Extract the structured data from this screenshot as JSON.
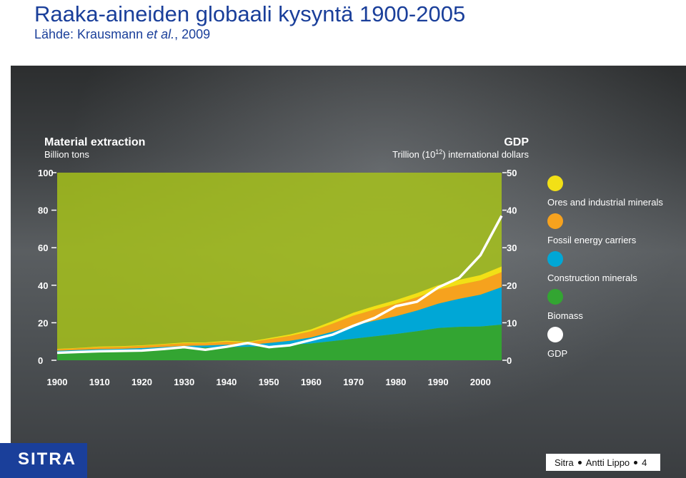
{
  "header": {
    "title": "Raaka-aineiden globaali kysyntä 1900-2005",
    "subtitle_prefix": "Lähde: Krausmann ",
    "subtitle_italic": "et al.",
    "subtitle_suffix": ", 2009"
  },
  "chart_data": {
    "type": "area",
    "left_axis": {
      "title": "Material extraction",
      "unit": "Billion tons",
      "ticks": [
        "0",
        "20",
        "40",
        "60",
        "80",
        "100"
      ],
      "range": [
        0,
        100
      ]
    },
    "right_axis": {
      "title": "GDP",
      "unit_prefix": "Trillion (10",
      "unit_sup": "12",
      "unit_suffix": ") international dollars",
      "ticks": [
        "0",
        "10",
        "20",
        "30",
        "40",
        "50"
      ],
      "range": [
        0,
        50
      ]
    },
    "x": [
      1900,
      1905,
      1910,
      1915,
      1920,
      1925,
      1930,
      1935,
      1940,
      1945,
      1950,
      1955,
      1960,
      1965,
      1970,
      1975,
      1980,
      1985,
      1990,
      1995,
      2000,
      2005
    ],
    "x_ticks": [
      "1900",
      "1910",
      "1920",
      "1930",
      "1940",
      "1950",
      "1960",
      "1970",
      "1980",
      "1990",
      "2000"
    ],
    "series": [
      {
        "name": "Biomass",
        "color": "#33a532",
        "values": [
          4.5,
          4.8,
          5.1,
          5.3,
          5.6,
          6.0,
          6.5,
          6.8,
          7.0,
          7.2,
          7.6,
          8.2,
          9.0,
          10.2,
          11.5,
          12.8,
          14.0,
          15.5,
          17.2,
          17.8,
          18.0,
          19.0
        ]
      },
      {
        "name": "Construction minerals",
        "color": "#00a7d6",
        "values": [
          0.6,
          0.7,
          0.8,
          0.8,
          0.9,
          1.1,
          1.2,
          1.1,
          1.3,
          1.0,
          1.6,
          2.2,
          3.2,
          5.0,
          7.0,
          8.3,
          9.5,
          11.0,
          13.0,
          15.0,
          17.0,
          20.0
        ]
      },
      {
        "name": "Fossil energy carriers",
        "color": "#f6a21e",
        "values": [
          0.8,
          0.9,
          1.1,
          1.1,
          1.2,
          1.3,
          1.4,
          1.3,
          1.6,
          1.3,
          2.0,
          2.6,
          3.3,
          4.3,
          5.3,
          6.0,
          6.6,
          7.1,
          7.4,
          7.5,
          7.6,
          8.0
        ]
      },
      {
        "name": "Ores and industrial minerals",
        "color": "#f2e016",
        "values": [
          0.2,
          0.2,
          0.3,
          0.3,
          0.3,
          0.3,
          0.4,
          0.3,
          0.5,
          0.4,
          0.6,
          0.8,
          1.0,
          1.3,
          1.6,
          1.8,
          2.0,
          2.2,
          2.4,
          2.6,
          2.8,
          3.0
        ]
      }
    ],
    "gdp": {
      "name": "GDP",
      "color": "#ffffff",
      "values": [
        2.0,
        2.2,
        2.4,
        2.5,
        2.6,
        3.0,
        3.5,
        2.8,
        3.6,
        4.6,
        3.5,
        4.0,
        5.4,
        6.8,
        9.2,
        11.3,
        14.4,
        15.6,
        19.4,
        22.0,
        28.0,
        38.5
      ]
    },
    "legend": {
      "placement": "right",
      "items": [
        {
          "label": "Ores and industrial minerals",
          "color": "#f2e016"
        },
        {
          "label": "Fossil energy carriers",
          "color": "#f6a21e"
        },
        {
          "label": "Construction minerals",
          "color": "#00a7d6"
        },
        {
          "label": "Biomass",
          "color": "#33a532"
        },
        {
          "label": "GDP",
          "color": "#ffffff"
        }
      ]
    },
    "plot_background": "#a8c418"
  },
  "footer": {
    "logo": "SITRA",
    "credit_org": "Sitra",
    "credit_name": "Antti Lippo",
    "page": "4"
  }
}
